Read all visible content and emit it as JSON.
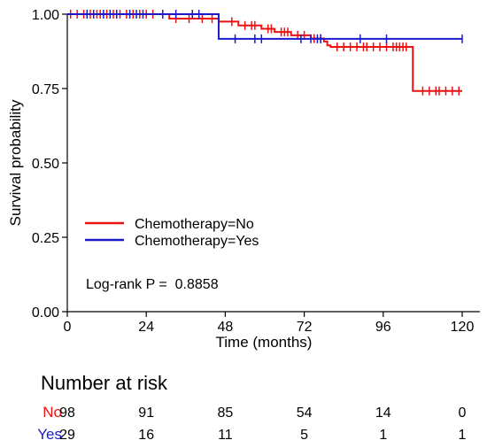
{
  "chart_data": {
    "type": "line",
    "subtype": "kaplan-meier",
    "xlabel": "Time (months)",
    "ylabel": "Survival probability",
    "xlim": [
      0,
      120
    ],
    "ylim": [
      0,
      1
    ],
    "xticks": [
      0,
      24,
      48,
      72,
      96,
      120
    ],
    "xtick_labels": [
      "0",
      "24",
      "48",
      "72",
      "96",
      "120"
    ],
    "yticks": [
      0,
      0.25,
      0.5,
      0.75,
      1
    ],
    "ytick_labels": [
      "0.00",
      "0.25",
      "0.50",
      "0.75",
      "1.00"
    ],
    "grid": false,
    "legend_position": "bottom-left",
    "annotation": "Log-rank P =  0.8858",
    "series": [
      {
        "name": "Chemotherapy=No",
        "color": "#ee1111",
        "steps": [
          [
            0,
            1.0
          ],
          [
            31,
            0.985
          ],
          [
            46,
            0.975
          ],
          [
            52,
            0.962
          ],
          [
            59,
            0.951
          ],
          [
            63,
            0.94
          ],
          [
            68,
            0.929
          ],
          [
            74,
            0.918
          ],
          [
            78,
            0.908
          ],
          [
            79,
            0.895
          ],
          [
            80,
            0.89
          ],
          [
            105,
            0.742
          ]
        ],
        "end": 120,
        "censored": [
          [
            1,
            1.0
          ],
          [
            3,
            1.0
          ],
          [
            5,
            1.0
          ],
          [
            7,
            1.0
          ],
          [
            9,
            1.0
          ],
          [
            10,
            1.0
          ],
          [
            12,
            1.0
          ],
          [
            14,
            1.0
          ],
          [
            16,
            1.0
          ],
          [
            18,
            1.0
          ],
          [
            20,
            1.0
          ],
          [
            22,
            1.0
          ],
          [
            24,
            1.0
          ],
          [
            26,
            1.0
          ],
          [
            33,
            0.985
          ],
          [
            37,
            0.985
          ],
          [
            41,
            0.985
          ],
          [
            44,
            0.985
          ],
          [
            50,
            0.975
          ],
          [
            54,
            0.962
          ],
          [
            56,
            0.962
          ],
          [
            57,
            0.962
          ],
          [
            61,
            0.951
          ],
          [
            62,
            0.951
          ],
          [
            65,
            0.94
          ],
          [
            66,
            0.94
          ],
          [
            67,
            0.94
          ],
          [
            70,
            0.929
          ],
          [
            72,
            0.929
          ],
          [
            75,
            0.918
          ],
          [
            77,
            0.918
          ],
          [
            82,
            0.89
          ],
          [
            84,
            0.89
          ],
          [
            86,
            0.89
          ],
          [
            88,
            0.89
          ],
          [
            90,
            0.89
          ],
          [
            91,
            0.89
          ],
          [
            93,
            0.89
          ],
          [
            95,
            0.89
          ],
          [
            97,
            0.89
          ],
          [
            99,
            0.89
          ],
          [
            100,
            0.89
          ],
          [
            101,
            0.89
          ],
          [
            102,
            0.89
          ],
          [
            103,
            0.89
          ],
          [
            108,
            0.742
          ],
          [
            110,
            0.742
          ],
          [
            112,
            0.742
          ],
          [
            113,
            0.742
          ],
          [
            115,
            0.742
          ],
          [
            117,
            0.742
          ],
          [
            119,
            0.742
          ]
        ]
      },
      {
        "name": "Chemotherapy=Yes",
        "color": "#1a1acc",
        "steps": [
          [
            0,
            1.0
          ],
          [
            46,
            0.917
          ]
        ],
        "end": 120,
        "censored": [
          [
            6,
            1.0
          ],
          [
            8,
            1.0
          ],
          [
            11,
            1.0
          ],
          [
            13,
            1.0
          ],
          [
            15,
            1.0
          ],
          [
            19,
            1.0
          ],
          [
            21,
            1.0
          ],
          [
            23,
            1.0
          ],
          [
            29,
            1.0
          ],
          [
            33,
            1.0
          ],
          [
            38,
            1.0
          ],
          [
            40,
            1.0
          ],
          [
            51,
            0.917
          ],
          [
            57,
            0.917
          ],
          [
            59,
            0.917
          ],
          [
            71,
            0.917
          ],
          [
            74,
            0.917
          ],
          [
            76,
            0.917
          ],
          [
            77,
            0.917
          ],
          [
            89,
            0.917
          ],
          [
            97,
            0.917
          ],
          [
            120,
            0.917
          ]
        ]
      }
    ]
  },
  "risk_table": {
    "title": "Number at risk",
    "times": [
      0,
      24,
      48,
      72,
      96,
      120
    ],
    "rows": [
      {
        "label": "No",
        "color": "#ee1111",
        "values": [
          "98",
          "91",
          "85",
          "54",
          "14",
          "0"
        ]
      },
      {
        "label": "Yes",
        "color": "#1a1acc",
        "values": [
          "29",
          "16",
          "11",
          "5",
          "1",
          "1"
        ]
      }
    ]
  }
}
